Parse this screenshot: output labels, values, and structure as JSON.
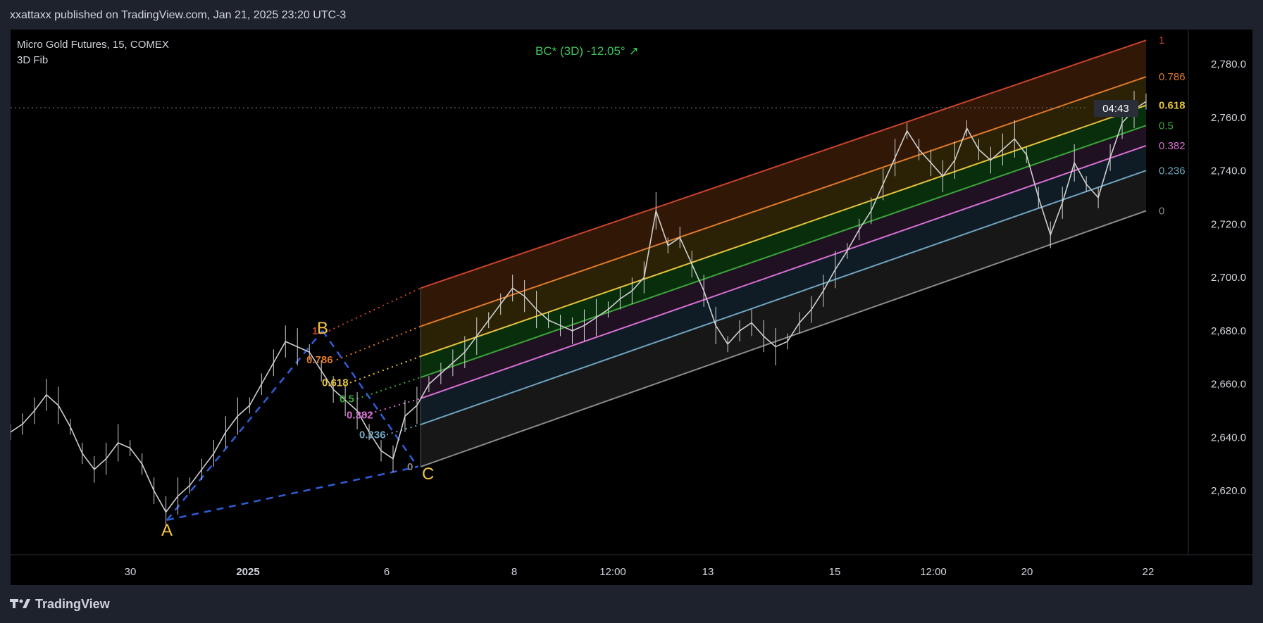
{
  "header": {
    "publisher_line": "xxattaxx published on TradingView.com, Jan 21, 2025 23:20 UTC-3"
  },
  "chart_info": {
    "symbol": "Micro Gold Futures, 15, COMEX",
    "indicator": "3D Fib",
    "bc_angle_label": "BC* (3D) -12.05° ↗",
    "countdown": "04:43"
  },
  "footer": {
    "logo_text": "TradingView"
  },
  "colors": {
    "panel_bg": "#000000",
    "page_bg": "#1e222d",
    "candles": "#d0d0d0",
    "abc_lines": "#2f5ed8",
    "abc_labels": "#f5c542",
    "bc_label": "#3cc45a",
    "fib_1": "#c9432c",
    "fib_0786": "#e07a27",
    "fib_0618": "#e6c43a",
    "fib_05": "#3aa63a",
    "fib_0382": "#d86fd2",
    "fib_0236": "#6fa4c0",
    "fib_0": "#8a8a8a"
  },
  "chart_data": {
    "type": "line",
    "title": "Micro Gold Futures, 15, COMEX",
    "xlabel": "",
    "ylabel": "",
    "ylim": [
      2596,
      2793
    ],
    "x_ticks": [
      "30",
      "2025",
      "6",
      "8",
      "12:00",
      "13",
      "15",
      "12:00",
      "20",
      "22"
    ],
    "y_ticks": [
      2620,
      2640,
      2660,
      2680,
      2700,
      2720,
      2740,
      2760,
      2780
    ],
    "y_tick_labels": [
      "2,620.0",
      "2,640.0",
      "2,660.0",
      "2,680.0",
      "2,700.0",
      "2,720.0",
      "2,740.0",
      "2,760.0",
      "2,780.0"
    ],
    "current_price": 2764,
    "series": [
      {
        "name": "Micro Gold Futures, 15, COMEX",
        "values": [
          2642,
          2645,
          2650,
          2656,
          2652,
          2644,
          2634,
          2628,
          2632,
          2638,
          2636,
          2630,
          2620,
          2612,
          2618,
          2622,
          2628,
          2634,
          2642,
          2648,
          2652,
          2660,
          2668,
          2676,
          2674,
          2672,
          2665,
          2658,
          2654,
          2650,
          2642,
          2635,
          2632,
          2648,
          2652,
          2660,
          2664,
          2668,
          2672,
          2678,
          2684,
          2690,
          2696,
          2693,
          2688,
          2684,
          2682,
          2680,
          2682,
          2685,
          2688,
          2692,
          2695,
          2700,
          2725,
          2712,
          2715,
          2705,
          2695,
          2682,
          2675,
          2680,
          2683,
          2678,
          2674,
          2676,
          2683,
          2688,
          2695,
          2703,
          2710,
          2718,
          2725,
          2735,
          2745,
          2755,
          2748,
          2743,
          2738,
          2744,
          2756,
          2748,
          2744,
          2748,
          2752,
          2746,
          2730,
          2716,
          2728,
          2743,
          2735,
          2730,
          2745,
          2758,
          2763,
          2766
        ]
      }
    ],
    "abc_points": [
      {
        "label": "A",
        "value": 2609
      },
      {
        "label": "B",
        "value": 2680
      },
      {
        "label": "C",
        "value": 2629
      }
    ],
    "fib_levels": [
      {
        "level": "1",
        "ratio": 1,
        "label": "1"
      },
      {
        "level": "0.786",
        "ratio": 0.786,
        "label": "0.786"
      },
      {
        "level": "0.618",
        "ratio": 0.618,
        "label": "0.618"
      },
      {
        "level": "0.5",
        "ratio": 0.5,
        "label": "0.5"
      },
      {
        "level": "0.382",
        "ratio": 0.382,
        "label": "0.382"
      },
      {
        "level": "0.236",
        "ratio": 0.236,
        "label": "0.236"
      },
      {
        "level": "0",
        "ratio": 0,
        "label": "0"
      }
    ],
    "fib_channel": {
      "start_low": 2629,
      "start_high": 2696,
      "end_low": 2725,
      "end_high": 2789
    },
    "grid": false
  }
}
